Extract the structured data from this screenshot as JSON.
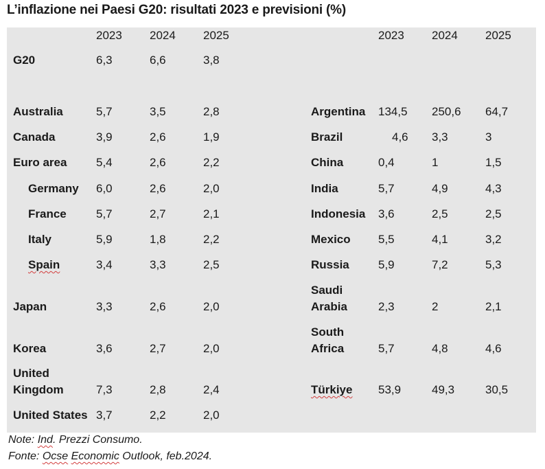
{
  "title": "L’inflazione nei Paesi G20: risultati 2023 e previsioni (%)",
  "years": [
    "2023",
    "2024",
    "2025"
  ],
  "left": {
    "g20": {
      "name": "G20",
      "v2023": "6,3",
      "v2024": "6,6",
      "v2025": "3,8"
    },
    "rows": [
      {
        "name": "Australia",
        "v2023": "5,7",
        "v2024": "3,5",
        "v2025": "2,8"
      },
      {
        "name": "Canada",
        "v2023": "3,9",
        "v2024": "2,6",
        "v2025": "1,9"
      },
      {
        "name": "Euro area",
        "v2023": "5,4",
        "v2024": "2,6",
        "v2025": "2,2"
      },
      {
        "name": "Germany",
        "v2023": "6,0",
        "v2024": "2,6",
        "v2025": "2,0"
      },
      {
        "name": "France",
        "v2023": "5,7",
        "v2024": "2,7",
        "v2025": "2,1"
      },
      {
        "name": "Italy",
        "v2023": "5,9",
        "v2024": "1,8",
        "v2025": "2,2"
      },
      {
        "name": "Spain",
        "v2023": "3,4",
        "v2024": "3,3",
        "v2025": "2,5"
      },
      {
        "name": "Japan",
        "v2023": "3,3",
        "v2024": "2,6",
        "v2025": "2,0"
      },
      {
        "name": "Korea",
        "v2023": "3,6",
        "v2024": "2,7",
        "v2025": "2,0"
      },
      {
        "name_line1": "United",
        "name_line2": "Kingdom",
        "v2023": "7,3",
        "v2024": "2,8",
        "v2025": "2,4"
      },
      {
        "name": "United States",
        "v2023": "3,7",
        "v2024": "2,2",
        "v2025": "2,0"
      }
    ]
  },
  "right": {
    "rows": [
      {
        "name": "Argentina",
        "v2023": "134,5",
        "v2024": "250,6",
        "v2025": "64,7"
      },
      {
        "name": "Brazil",
        "v2023": "4,6",
        "v2024": "3,3",
        "v2025": "3"
      },
      {
        "name": "China",
        "v2023": "0,4",
        "v2024": "1",
        "v2025": "1,5"
      },
      {
        "name": "India",
        "v2023": "5,7",
        "v2024": "4,9",
        "v2025": "4,3"
      },
      {
        "name": "Indonesia",
        "v2023": "3,6",
        "v2024": "2,5",
        "v2025": "2,5"
      },
      {
        "name": "Mexico",
        "v2023": "5,5",
        "v2024": "4,1",
        "v2025": "3,2"
      },
      {
        "name": "Russia",
        "v2023": "5,9",
        "v2024": "7,2",
        "v2025": "5,3"
      },
      {
        "name_line1": "Saudi",
        "name_line2": "Arabia",
        "v2023": "2,3",
        "v2024": "2",
        "v2025": "2,1"
      },
      {
        "name_line1": "South",
        "name_line2": "Africa",
        "v2023": "5,7",
        "v2024": "4,8",
        "v2025": "4,6"
      },
      {
        "name": "Türkiye",
        "v2023": "53,9",
        "v2024": "49,3",
        "v2025": "30,5"
      }
    ]
  },
  "notes": {
    "note": "Note: Ind. Prezzi Consumo.",
    "source": "Fonte: Ocse Economic Outlook, feb.2024."
  }
}
